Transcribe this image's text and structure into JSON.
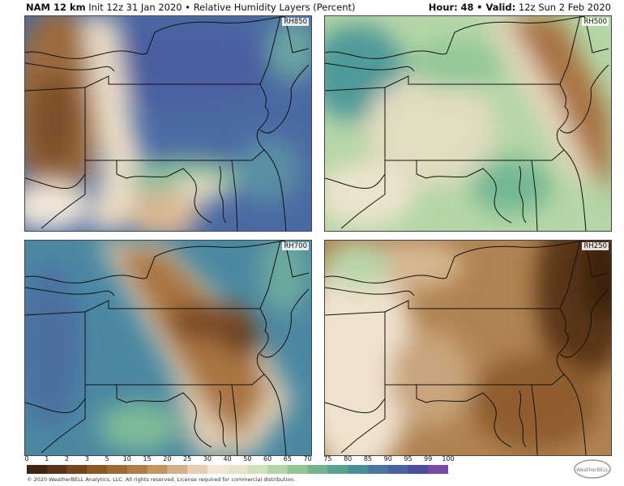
{
  "header": {
    "model": "NAM 12 km",
    "init": "Init 12z 31 Jan 2020",
    "product": "• Relative Humidity Layers (Percent)",
    "hour_label": "Hour:",
    "hour": "48",
    "valid_label": "• Valid:",
    "valid": "12z Sun 2 Feb 2020"
  },
  "panels": [
    {
      "label": "RH850"
    },
    {
      "label": "RH500"
    },
    {
      "label": "RH700"
    },
    {
      "label": "RH250"
    }
  ],
  "colorbar": {
    "labels": [
      "0",
      "1",
      "2",
      "3",
      "5",
      "10",
      "15",
      "20",
      "25",
      "30",
      "40",
      "50",
      "60",
      "65",
      "70",
      "75",
      "80",
      "85",
      "90",
      "95",
      "99",
      "100"
    ],
    "colors": [
      "#3e2512",
      "#5a3518",
      "#74461f",
      "#8c5828",
      "#a06a35",
      "#b07c45",
      "#c29561",
      "#d4b08a",
      "#e6cdb2",
      "#f2e6da",
      "#e8e4cc",
      "#cfe0bb",
      "#b3d4a4",
      "#93c493",
      "#74b38e",
      "#5aa18f",
      "#4a8e97",
      "#4a789f",
      "#4963a0",
      "#4b4e9c",
      "#7b4aa8"
    ]
  },
  "footer": "© 2020 WeatherBELL Analytics, LLC. All rights reserved. License required for commercial distribution.",
  "logo": "WeatherBELL"
}
